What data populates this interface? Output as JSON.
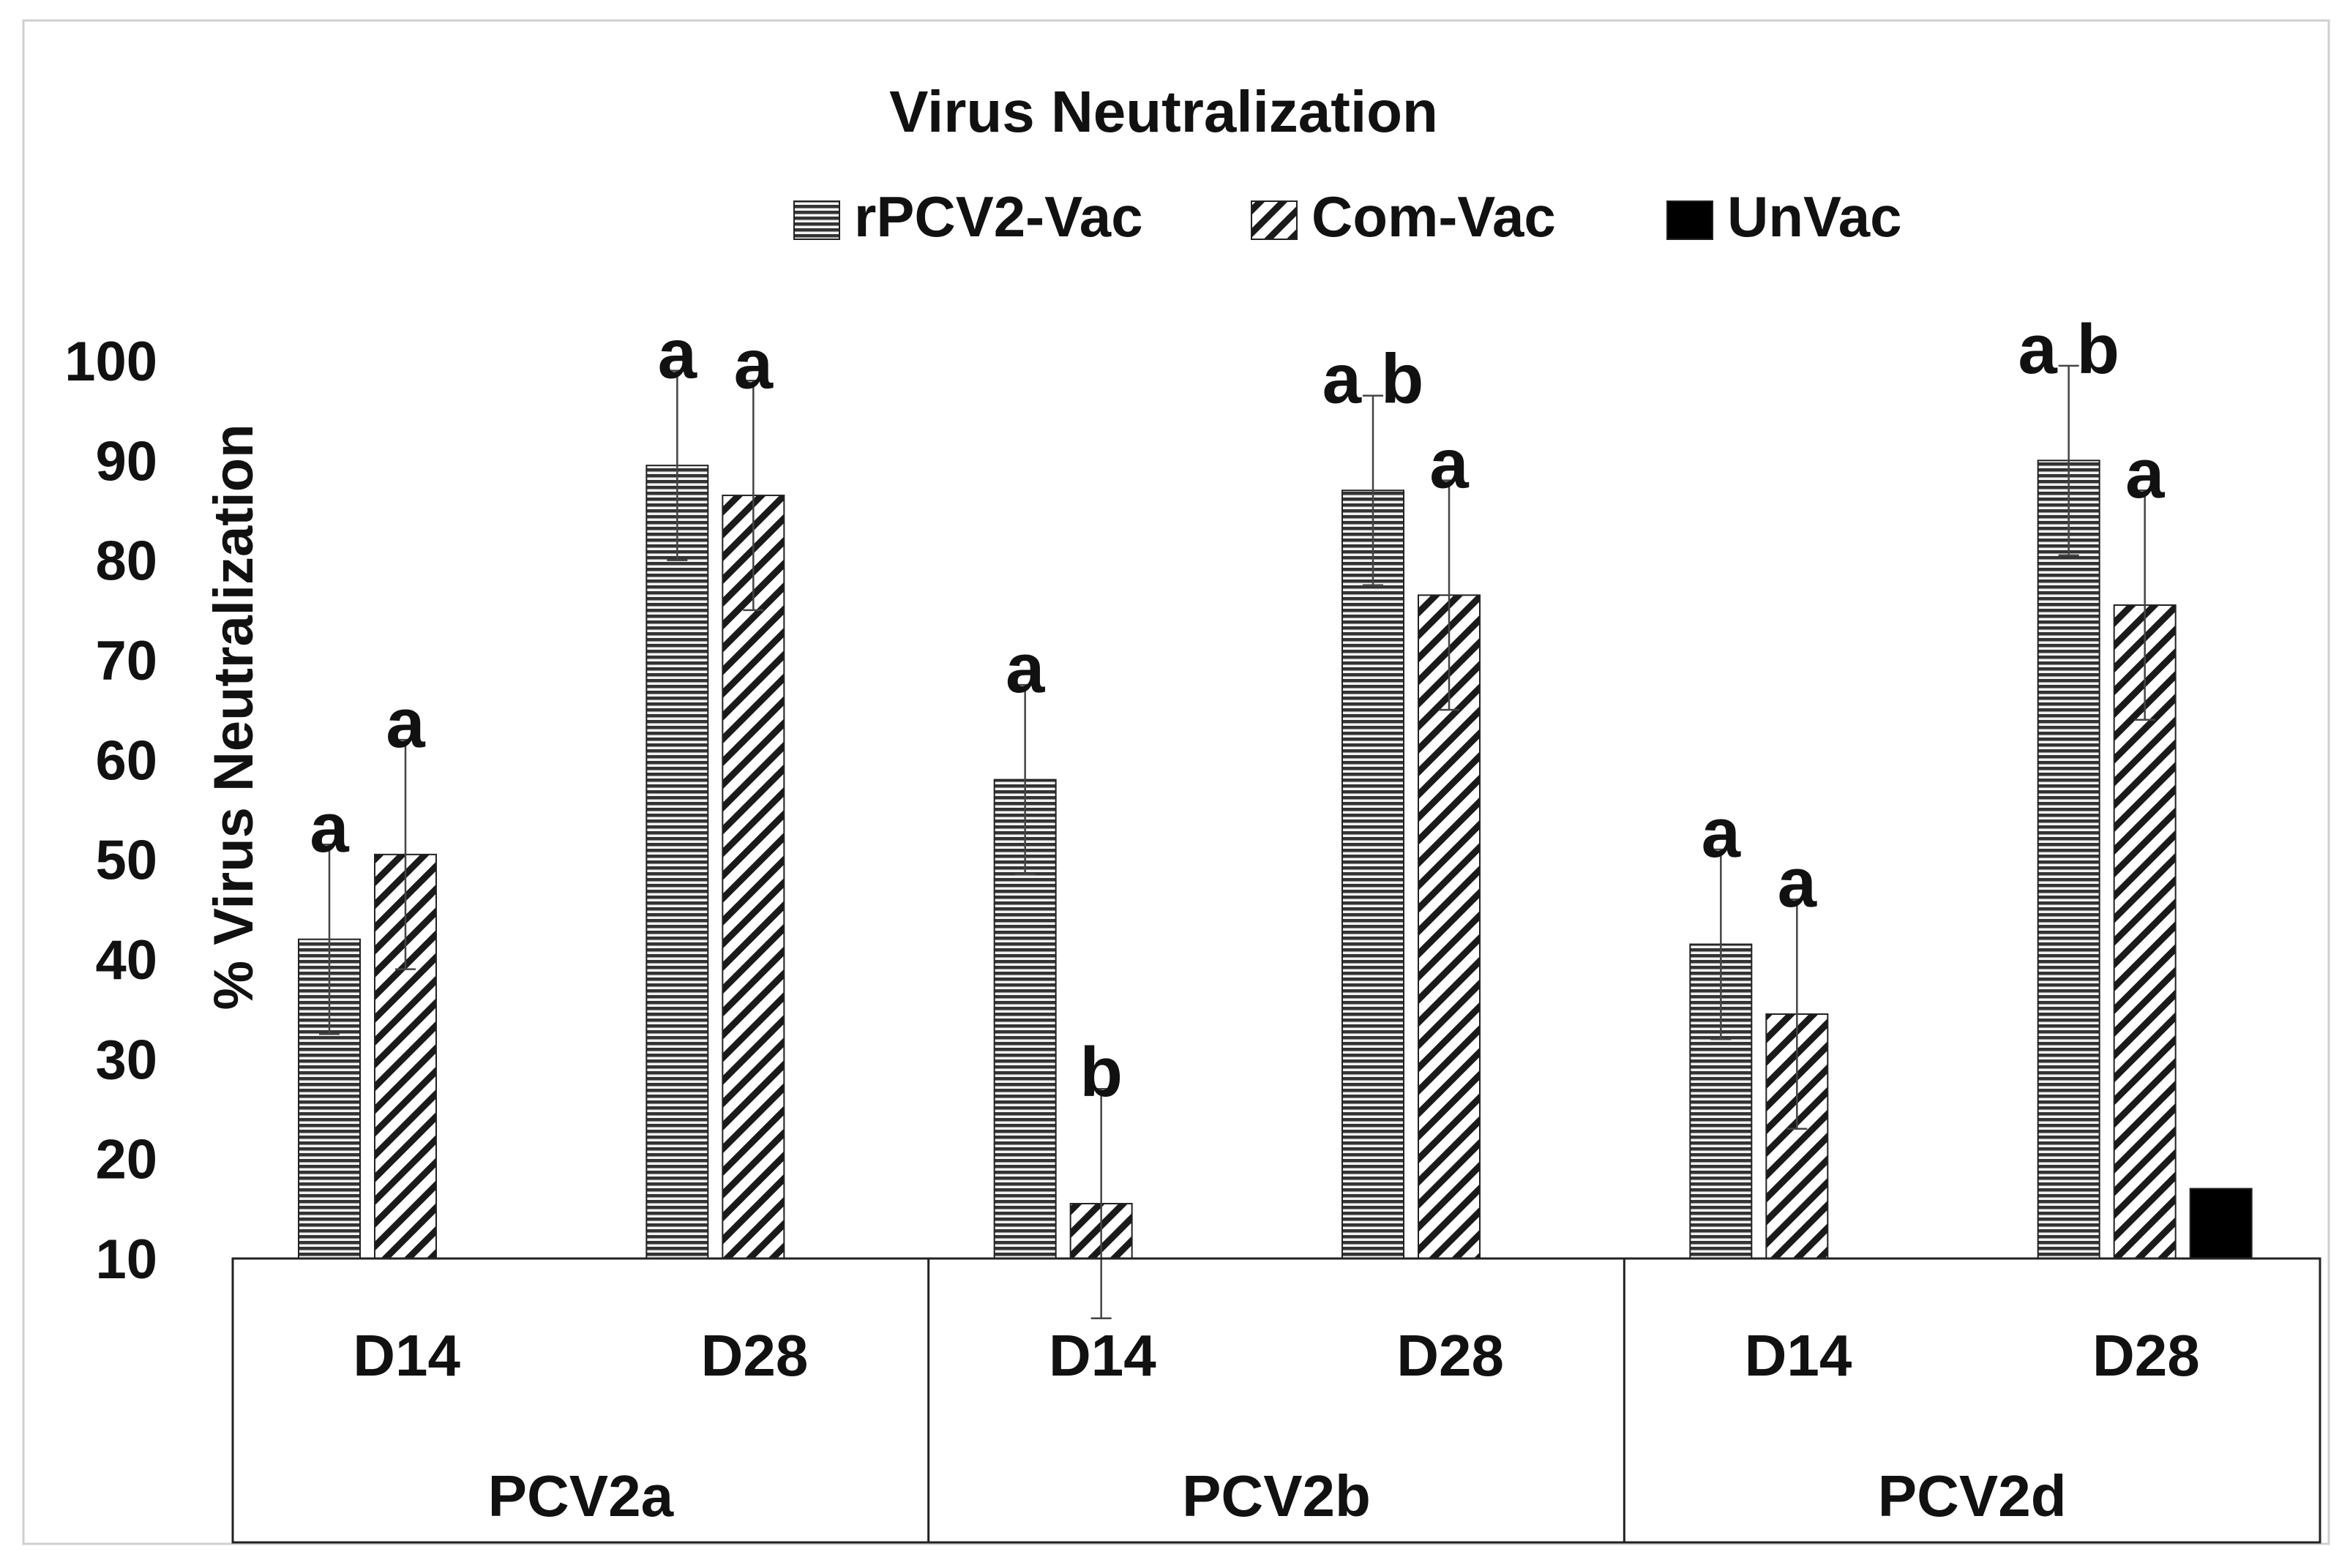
{
  "chart_data": {
    "type": "bar",
    "title": "Virus Neutralization",
    "ylabel": "% Virus Neutralization",
    "xlabel": "",
    "ylim": [
      10,
      100
    ],
    "yticks": [
      10,
      20,
      30,
      40,
      50,
      60,
      70,
      80,
      90,
      100
    ],
    "groups": [
      "PCV2a",
      "PCV2b",
      "PCV2d"
    ],
    "days": [
      "D14",
      "D28"
    ],
    "legend": [
      {
        "name": "rPCV2-Vac",
        "pattern": "horizontal-lines"
      },
      {
        "name": "Com-Vac",
        "pattern": "diagonal-hatch"
      },
      {
        "name": "UnVac",
        "pattern": "solid"
      }
    ],
    "legend_position": "top-center",
    "categories": [
      {
        "label": "D14",
        "group": "PCV2a",
        "bars": [
          {
            "series": "rPCV2-Vac",
            "value": 42,
            "error": 9.5,
            "letter": "a"
          },
          {
            "series": "Com-Vac",
            "value": 50.5,
            "error": 11.5,
            "letter": "a"
          }
        ]
      },
      {
        "label": "D28",
        "group": "PCV2a",
        "bars": [
          {
            "series": "rPCV2-Vac",
            "value": 89.5,
            "error": 9.5,
            "letter": "a"
          },
          {
            "series": "Com-Vac",
            "value": 86.5,
            "error": 11.5,
            "letter": "a"
          }
        ]
      },
      {
        "label": "D14",
        "group": "PCV2b",
        "bars": [
          {
            "series": "rPCV2-Vac",
            "value": 58,
            "error": 9.5,
            "letter": "a"
          },
          {
            "series": "Com-Vac",
            "value": 15.5,
            "error": 11.5,
            "letter": "b"
          }
        ]
      },
      {
        "label": "D28",
        "group": "PCV2b",
        "bars": [
          {
            "series": "rPCV2-Vac",
            "value": 87,
            "error": 9.5,
            "letter": "a b"
          },
          {
            "series": "Com-Vac",
            "value": 76.5,
            "error": 11.5,
            "letter": "a"
          }
        ]
      },
      {
        "label": "D14",
        "group": "PCV2d",
        "bars": [
          {
            "series": "rPCV2-Vac",
            "value": 41.5,
            "error": 9.5,
            "letter": "a"
          },
          {
            "series": "Com-Vac",
            "value": 34.5,
            "error": 11.5,
            "letter": "a"
          }
        ]
      },
      {
        "label": "D28",
        "group": "PCV2d",
        "bars": [
          {
            "series": "rPCV2-Vac",
            "value": 90,
            "error": 9.5,
            "letter": "a b"
          },
          {
            "series": "Com-Vac",
            "value": 75.5,
            "error": 11.5,
            "letter": "a"
          },
          {
            "series": "UnVac",
            "value": 17,
            "error": 0,
            "letter": ""
          }
        ]
      }
    ]
  }
}
